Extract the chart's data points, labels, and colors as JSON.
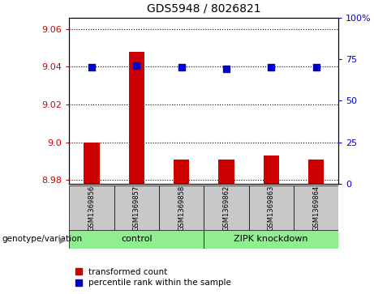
{
  "title": "GDS5948 / 8026821",
  "samples": [
    "GSM1369856",
    "GSM1369857",
    "GSM1369858",
    "GSM1369862",
    "GSM1369863",
    "GSM1369864"
  ],
  "transformed_counts": [
    9.0,
    9.048,
    8.991,
    8.991,
    8.993,
    8.991
  ],
  "percentile_ranks": [
    70,
    71,
    70,
    69,
    70,
    70
  ],
  "ylim_left": [
    8.978,
    9.066
  ],
  "ylim_right": [
    0,
    100
  ],
  "yticks_left": [
    8.98,
    9.0,
    9.02,
    9.04,
    9.06
  ],
  "yticks_right": [
    0,
    25,
    50,
    75,
    100
  ],
  "bar_color": "#cc0000",
  "dot_color": "#0000cc",
  "groups": [
    {
      "label": "control",
      "samples": [
        "GSM1369856",
        "GSM1369857",
        "GSM1369858"
      ],
      "color": "#90ee90"
    },
    {
      "label": "ZIPK knockdown",
      "samples": [
        "GSM1369862",
        "GSM1369863",
        "GSM1369864"
      ],
      "color": "#90ee90"
    }
  ],
  "xlabel_genotype": "genotype/variation",
  "legend_bar": "transformed count",
  "legend_dot": "percentile rank within the sample",
  "plot_bg": "#ffffff",
  "tick_label_color_left": "#cc0000",
  "tick_label_color_right": "#0000cc",
  "bar_bottom": 8.978,
  "dot_size": 30,
  "bar_width": 0.35
}
